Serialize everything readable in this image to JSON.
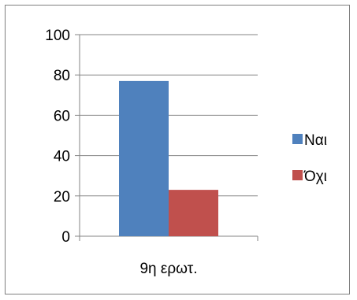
{
  "chart_data": {
    "type": "bar",
    "categories": [
      "9η ερωτ."
    ],
    "series": [
      {
        "name": "Ναι",
        "values": [
          77
        ],
        "color": "#4F81BD"
      },
      {
        "name": "Όχι",
        "values": [
          23
        ],
        "color": "#C0504D"
      }
    ],
    "ylim": [
      0,
      100
    ],
    "yticks": [
      0,
      20,
      40,
      60,
      80,
      100
    ],
    "grid": true,
    "legend": "right"
  }
}
